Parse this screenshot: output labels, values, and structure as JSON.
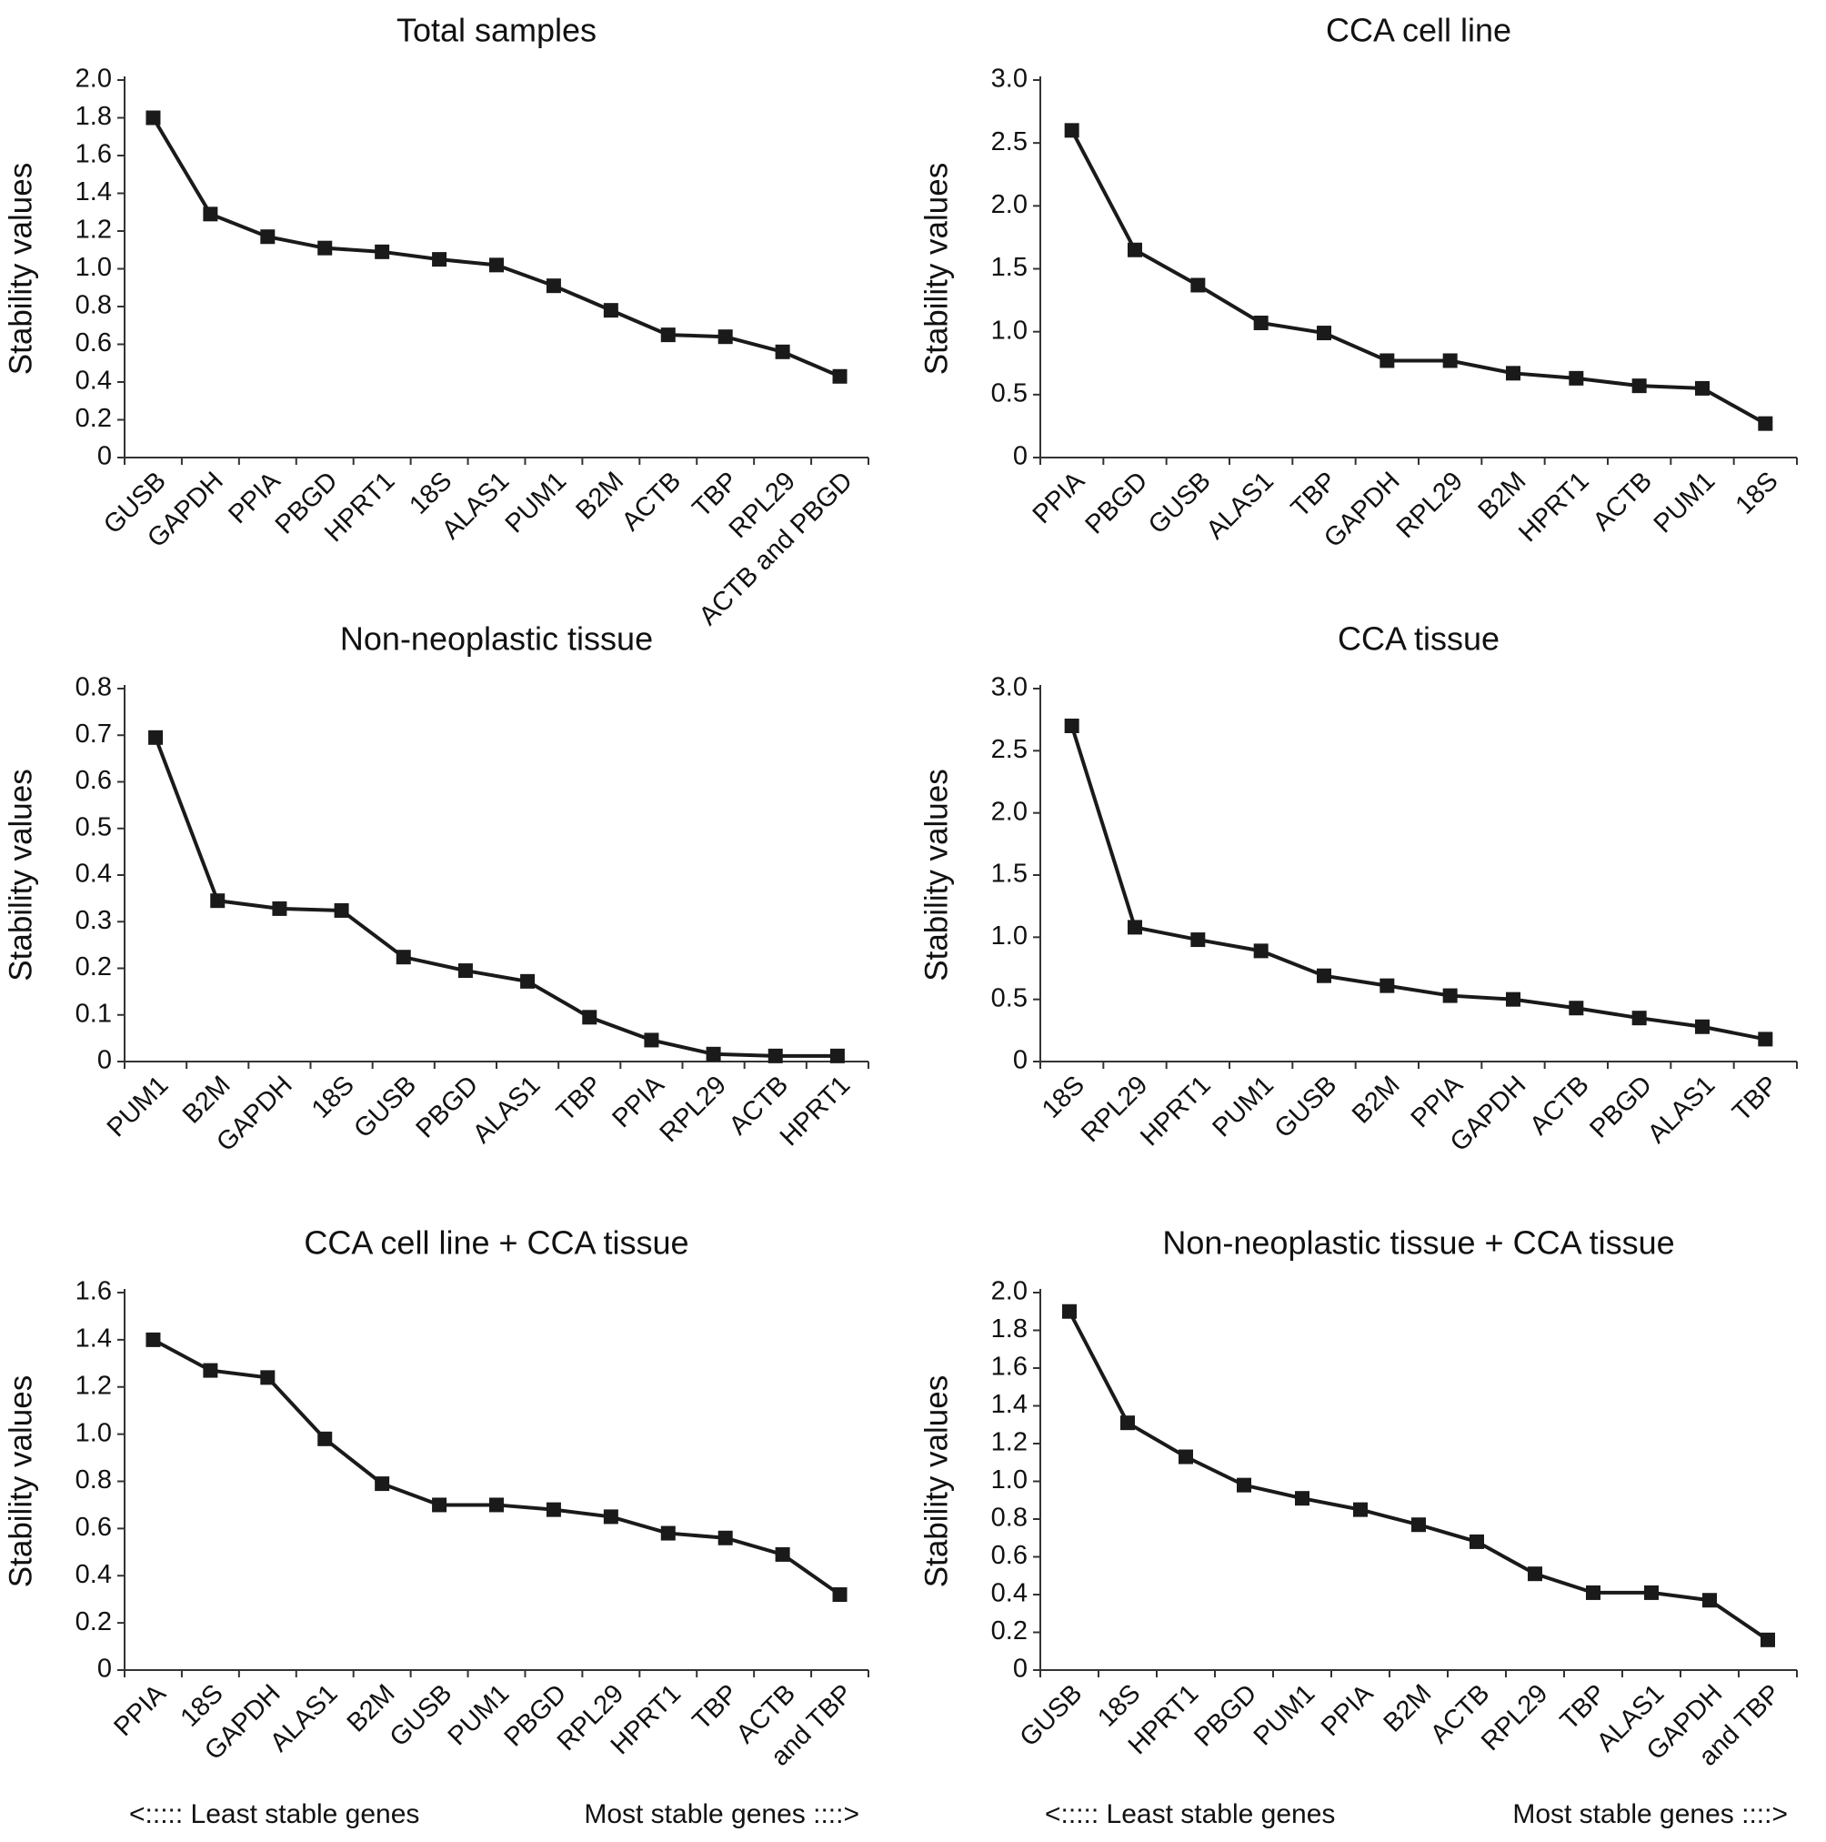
{
  "chart_data": [
    {
      "type": "line",
      "title": "Total samples",
      "y_label": "Stability values",
      "color": "#1a1a1a",
      "categories": [
        "GUSB",
        "GAPDH",
        "PPIA",
        "PBGD",
        "HPRT1",
        "18S",
        "ALAS1",
        "PUM1",
        "B2M",
        "ACTB",
        "TBP",
        "RPL29",
        "ACTB and PBGD"
      ],
      "values": [
        1.8,
        1.29,
        1.17,
        1.11,
        1.09,
        1.05,
        1.02,
        0.91,
        0.78,
        0.65,
        0.64,
        0.56,
        0.43
      ],
      "ylim": [
        0,
        2
      ],
      "yticks": [
        0,
        0.2,
        0.4,
        0.6,
        0.8,
        {
          "value": 1,
          "label": "1.0"
        },
        1.2,
        1.4,
        1.6,
        1.8,
        {
          "value": 2,
          "label": "2.0"
        }
      ]
    },
    {
      "type": "line",
      "title": "CCA cell line",
      "y_label": "Stability values",
      "color": "#1a1a1a",
      "categories": [
        "PPIA",
        "PBGD",
        "GUSB",
        "ALAS1",
        "TBP",
        "GAPDH",
        "RPL29",
        "B2M",
        "HPRT1",
        "ACTB",
        "PUM1",
        "18S"
      ],
      "values": [
        2.6,
        1.65,
        1.37,
        1.07,
        0.99,
        0.77,
        0.77,
        0.67,
        0.63,
        0.57,
        0.55,
        0.27
      ],
      "ylim": [
        0,
        3
      ],
      "yticks": [
        0,
        0.5,
        {
          "value": 1,
          "label": "1.0"
        },
        1.5,
        {
          "value": 2,
          "label": "2.0"
        },
        2.5,
        {
          "value": 3,
          "label": "3.0"
        }
      ]
    },
    {
      "type": "line",
      "title": "Non-neoplastic tissue",
      "y_label": "Stability values",
      "color": "#1a1a1a",
      "categories": [
        "PUM1",
        "B2M",
        "GAPDH",
        "18S",
        "GUSB",
        "PBGD",
        "ALAS1",
        "TBP",
        "PPIA",
        "RPL29",
        "ACTB",
        "HPRT1"
      ],
      "values": [
        0.695,
        0.345,
        0.328,
        0.324,
        0.224,
        0.195,
        0.172,
        0.095,
        0.046,
        0.016,
        0.012,
        0.012
      ],
      "ylim": [
        0,
        0.8
      ],
      "yticks": [
        0,
        0.1,
        0.2,
        0.3,
        0.4,
        0.5,
        0.6,
        0.7,
        0.8
      ]
    },
    {
      "type": "line",
      "title": "CCA tissue",
      "y_label": "Stability values",
      "color": "#1a1a1a",
      "categories": [
        "18S",
        "RPL29",
        "HPRT1",
        "PUM1",
        "GUSB",
        "B2M",
        "PPIA",
        "GAPDH",
        "ACTB",
        "PBGD",
        "ALAS1",
        "TBP"
      ],
      "values": [
        2.7,
        1.08,
        0.98,
        0.89,
        0.69,
        0.61,
        0.53,
        0.5,
        0.43,
        0.35,
        0.28,
        0.18
      ],
      "ylim": [
        0,
        3
      ],
      "yticks": [
        0,
        0.5,
        {
          "value": 1,
          "label": "1.0"
        },
        1.5,
        {
          "value": 2,
          "label": "2.0"
        },
        2.5,
        {
          "value": 3,
          "label": "3.0"
        }
      ]
    },
    {
      "type": "line",
      "title": "CCA cell line + CCA tissue",
      "y_label": "Stability values",
      "color": "#1a1a1a",
      "categories": [
        "PPIA",
        "18S",
        "GAPDH",
        "ALAS1",
        "B2M",
        "GUSB",
        "PUM1",
        "PBGD",
        "RPL29",
        "HPRT1",
        "TBP",
        "ACTB",
        "and TBP"
      ],
      "values": [
        1.4,
        1.27,
        1.24,
        0.98,
        0.79,
        0.7,
        0.7,
        0.68,
        0.65,
        0.58,
        0.56,
        0.49,
        0.32
      ],
      "ylim": [
        0,
        1.6
      ],
      "yticks": [
        0,
        0.2,
        0.4,
        0.6,
        0.8,
        {
          "value": 1,
          "label": "1.0"
        },
        1.2,
        1.4,
        1.6
      ],
      "annotations": [
        "<::::: Least stable genes",
        "Most stable genes ::::>"
      ]
    },
    {
      "type": "line",
      "title": "Non-neoplastic tissue + CCA tissue",
      "y_label": "Stability values",
      "color": "#1a1a1a",
      "categories": [
        "GUSB",
        "18S",
        "HPRT1",
        "PBGD",
        "PUM1",
        "PPIA",
        "B2M",
        "ACTB",
        "RPL29",
        "TBP",
        "ALAS1",
        "GAPDH",
        "and TBP"
      ],
      "values": [
        1.9,
        1.31,
        1.13,
        0.98,
        0.91,
        0.85,
        0.77,
        0.68,
        0.51,
        0.41,
        0.41,
        0.37,
        0.16
      ],
      "ylim": [
        0,
        2
      ],
      "yticks": [
        0,
        0.2,
        0.4,
        0.6,
        0.8,
        {
          "value": 1,
          "label": "1.0"
        },
        1.2,
        1.4,
        1.6,
        1.8,
        {
          "value": 2,
          "label": "2.0"
        }
      ],
      "annotations": [
        "<::::: Least stable genes",
        "Most stable genes ::::>"
      ]
    }
  ]
}
